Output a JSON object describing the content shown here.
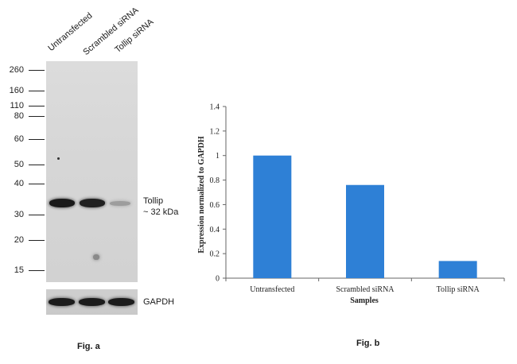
{
  "figure_a": {
    "caption": "Fig. a",
    "lane_labels": [
      "Untransfected",
      "Scrambled siRNA",
      "Tollip siRNA"
    ],
    "mw_markers": [
      "260",
      "160",
      "110",
      "80",
      "60",
      "50",
      "40",
      "30",
      "20",
      "15"
    ],
    "band_label_line1": "Tollip",
    "band_label_line2": "~ 32 kDa",
    "loading_control_label": "GAPDH"
  },
  "figure_b": {
    "caption": "Fig. b"
  },
  "chart_data": {
    "type": "bar",
    "categories": [
      "Untransfected",
      "Scrambled siRNA",
      "Tollip siRNA"
    ],
    "values": [
      1.0,
      0.76,
      0.14
    ],
    "xlabel": "Samples",
    "ylabel": "Expression normalized to GAPDH",
    "ylim": [
      0,
      1.4
    ],
    "yticks": [
      "0",
      "0.2",
      "0.4",
      "0.6",
      "0.8",
      "1",
      "1.2",
      "1.4"
    ],
    "bar_color": "#2e80d6",
    "grid": false,
    "legend": "none"
  }
}
